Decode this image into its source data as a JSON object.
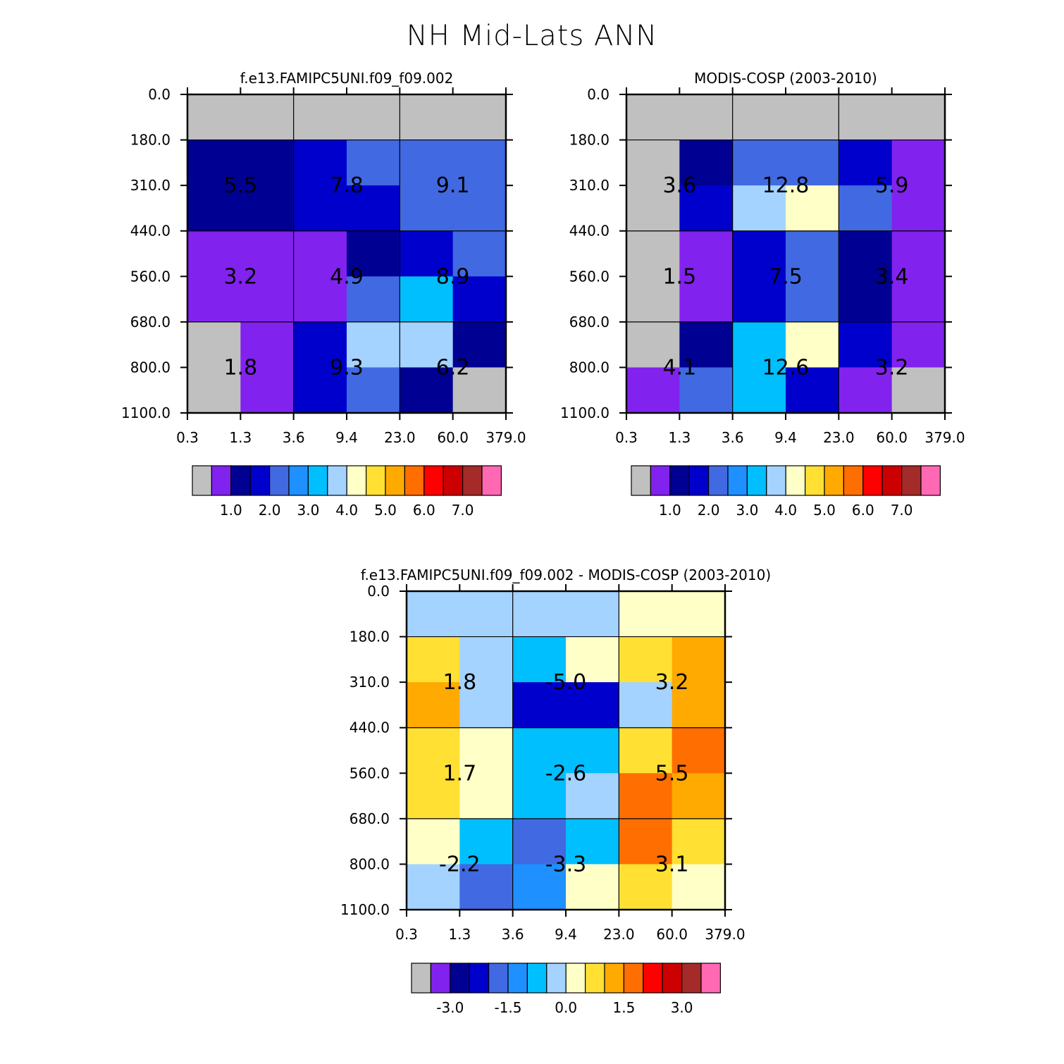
{
  "title": "NH Mid-Lats ANN",
  "colors": {
    "palette": [
      "#c0c0c0",
      "#8222ee",
      "#000092",
      "#0000cc",
      "#4169e1",
      "#1e90ff",
      "#00bfff",
      "#a4d3ff",
      "#ffffc8",
      "#ffe033",
      "#ffaa00",
      "#ff6e00",
      "#ff0000",
      "#cc0000",
      "#a52a2a",
      "#ff69b4"
    ]
  },
  "chart_data": [
    {
      "type": "heatmap",
      "title": "f.e13.FAMIPC5UNI.f09_f09.002",
      "xlabel": "",
      "ylabel": "",
      "x_ticks": [
        "0.3",
        "1.3",
        "3.6",
        "9.4",
        "23.0",
        "60.0",
        "379.0"
      ],
      "y_ticks": [
        "0.0",
        "180.0",
        "310.0",
        "440.0",
        "560.0",
        "680.0",
        "800.0",
        "1100.0"
      ],
      "cells": [
        [
          0,
          0,
          0,
          0,
          0,
          0
        ],
        [
          2,
          2,
          3,
          4,
          4,
          4
        ],
        [
          2,
          2,
          3,
          3,
          4,
          4
        ],
        [
          1,
          1,
          1,
          2,
          3,
          4
        ],
        [
          1,
          1,
          1,
          4,
          6,
          3
        ],
        [
          0,
          1,
          3,
          7,
          7,
          2
        ],
        [
          0,
          1,
          3,
          4,
          2,
          0
        ]
      ],
      "grid_lines_x": [
        "3.6",
        "23.0"
      ],
      "grid_lines_y": [
        "180.0",
        "440.0",
        "680.0"
      ],
      "box_values": [
        {
          "col": 0,
          "row": 0,
          "label": "5.5"
        },
        {
          "col": 1,
          "row": 0,
          "label": "7.8"
        },
        {
          "col": 2,
          "row": 0,
          "label": "9.1"
        },
        {
          "col": 0,
          "row": 1,
          "label": "3.2"
        },
        {
          "col": 1,
          "row": 1,
          "label": "4.9"
        },
        {
          "col": 2,
          "row": 1,
          "label": "8.9"
        },
        {
          "col": 0,
          "row": 2,
          "label": "1.8"
        },
        {
          "col": 1,
          "row": 2,
          "label": "9.3"
        },
        {
          "col": 2,
          "row": 2,
          "label": "6.2"
        }
      ],
      "colorbar": {
        "colors": [
          0,
          1,
          2,
          3,
          4,
          5,
          6,
          7,
          8,
          9,
          10,
          11,
          12,
          13,
          14,
          15
        ],
        "labels": [
          {
            "after_box": 2,
            "label": "1.0"
          },
          {
            "after_box": 4,
            "label": "2.0"
          },
          {
            "after_box": 6,
            "label": "3.0"
          },
          {
            "after_box": 8,
            "label": "4.0"
          },
          {
            "after_box": 10,
            "label": "5.0"
          },
          {
            "after_box": 12,
            "label": "6.0"
          },
          {
            "after_box": 14,
            "label": "7.0"
          }
        ]
      }
    },
    {
      "type": "heatmap",
      "title": "MODIS-COSP (2003-2010)",
      "xlabel": "",
      "ylabel": "",
      "x_ticks": [
        "0.3",
        "1.3",
        "3.6",
        "9.4",
        "23.0",
        "60.0",
        "379.0"
      ],
      "y_ticks": [
        "0.0",
        "180.0",
        "310.0",
        "440.0",
        "560.0",
        "680.0",
        "800.0",
        "1100.0"
      ],
      "cells": [
        [
          0,
          0,
          0,
          0,
          0,
          0
        ],
        [
          0,
          2,
          4,
          4,
          3,
          1
        ],
        [
          0,
          3,
          7,
          8,
          4,
          1
        ],
        [
          0,
          1,
          3,
          4,
          2,
          1
        ],
        [
          0,
          1,
          3,
          4,
          2,
          1
        ],
        [
          0,
          2,
          6,
          8,
          3,
          1
        ],
        [
          1,
          4,
          6,
          3,
          1,
          0
        ]
      ],
      "grid_lines_x": [
        "3.6",
        "23.0"
      ],
      "grid_lines_y": [
        "180.0",
        "440.0",
        "680.0"
      ],
      "box_values": [
        {
          "col": 0,
          "row": 0,
          "label": "3.6"
        },
        {
          "col": 1,
          "row": 0,
          "label": "12.8"
        },
        {
          "col": 2,
          "row": 0,
          "label": "5.9"
        },
        {
          "col": 0,
          "row": 1,
          "label": "1.5"
        },
        {
          "col": 1,
          "row": 1,
          "label": "7.5"
        },
        {
          "col": 2,
          "row": 1,
          "label": "3.4"
        },
        {
          "col": 0,
          "row": 2,
          "label": "4.1"
        },
        {
          "col": 1,
          "row": 2,
          "label": "12.6"
        },
        {
          "col": 2,
          "row": 2,
          "label": "3.2"
        }
      ],
      "colorbar": {
        "colors": [
          0,
          1,
          2,
          3,
          4,
          5,
          6,
          7,
          8,
          9,
          10,
          11,
          12,
          13,
          14,
          15
        ],
        "labels": [
          {
            "after_box": 2,
            "label": "1.0"
          },
          {
            "after_box": 4,
            "label": "2.0"
          },
          {
            "after_box": 6,
            "label": "3.0"
          },
          {
            "after_box": 8,
            "label": "4.0"
          },
          {
            "after_box": 10,
            "label": "5.0"
          },
          {
            "after_box": 12,
            "label": "6.0"
          },
          {
            "after_box": 14,
            "label": "7.0"
          }
        ]
      }
    },
    {
      "type": "heatmap",
      "title": "f.e13.FAMIPC5UNI.f09_f09.002 - MODIS-COSP (2003-2010)",
      "xlabel": "",
      "ylabel": "",
      "x_ticks": [
        "0.3",
        "1.3",
        "3.6",
        "9.4",
        "23.0",
        "60.0",
        "379.0"
      ],
      "y_ticks": [
        "0.0",
        "180.0",
        "310.0",
        "440.0",
        "560.0",
        "680.0",
        "800.0",
        "1100.0"
      ],
      "cells": [
        [
          7,
          7,
          7,
          7,
          8,
          8
        ],
        [
          9,
          7,
          6,
          8,
          9,
          10
        ],
        [
          10,
          7,
          3,
          3,
          7,
          10
        ],
        [
          9,
          8,
          6,
          6,
          9,
          11
        ],
        [
          9,
          8,
          6,
          7,
          11,
          10
        ],
        [
          8,
          6,
          4,
          6,
          11,
          9
        ],
        [
          7,
          4,
          5,
          8,
          9,
          8
        ]
      ],
      "grid_lines_x": [
        "3.6",
        "23.0"
      ],
      "grid_lines_y": [
        "180.0",
        "440.0",
        "680.0"
      ],
      "box_values": [
        {
          "col": 0,
          "row": 0,
          "label": "1.8"
        },
        {
          "col": 1,
          "row": 0,
          "label": "-5.0"
        },
        {
          "col": 2,
          "row": 0,
          "label": "3.2"
        },
        {
          "col": 0,
          "row": 1,
          "label": "1.7"
        },
        {
          "col": 1,
          "row": 1,
          "label": "-2.6"
        },
        {
          "col": 2,
          "row": 1,
          "label": "5.5"
        },
        {
          "col": 0,
          "row": 2,
          "label": "-2.2"
        },
        {
          "col": 1,
          "row": 2,
          "label": "-3.3"
        },
        {
          "col": 2,
          "row": 2,
          "label": "3.1"
        }
      ],
      "colorbar": {
        "colors": [
          0,
          1,
          2,
          3,
          4,
          5,
          6,
          7,
          8,
          9,
          10,
          11,
          12,
          13,
          14,
          15
        ],
        "labels": [
          {
            "after_box": 2,
            "label": "-3.0"
          },
          {
            "after_box": 5,
            "label": "-1.5"
          },
          {
            "after_box": 8,
            "label": "0.0"
          },
          {
            "after_box": 11,
            "label": "1.5"
          },
          {
            "after_box": 14,
            "label": "3.0"
          }
        ]
      }
    }
  ]
}
